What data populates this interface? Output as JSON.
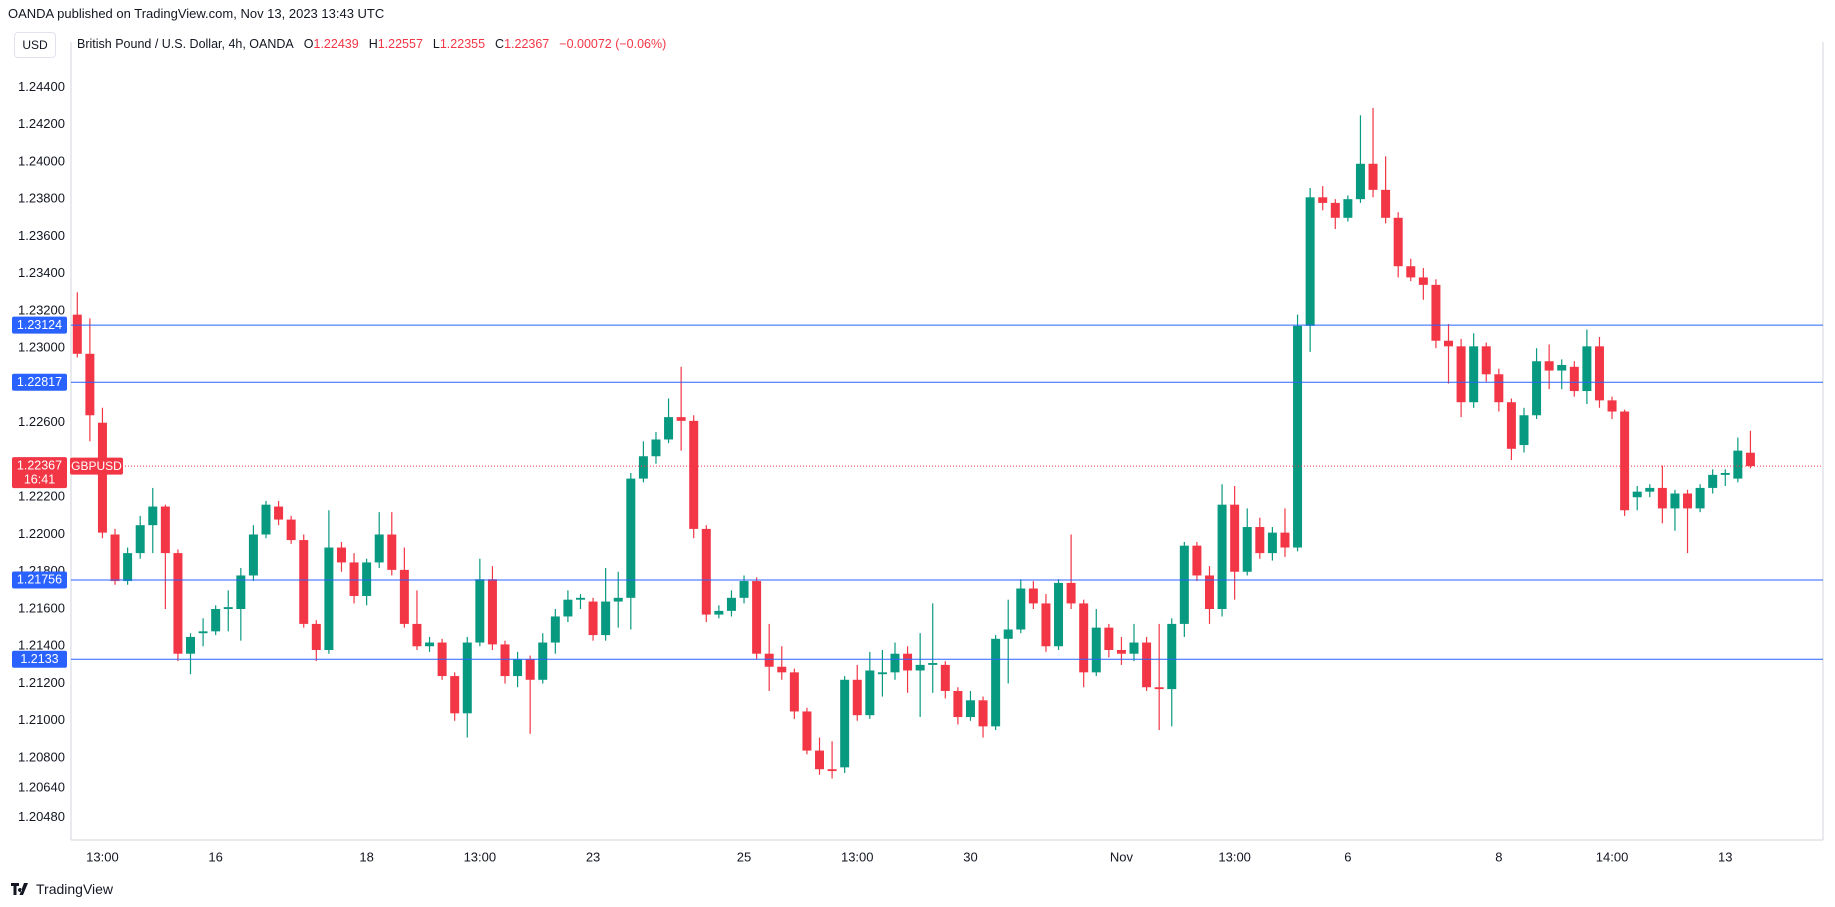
{
  "header": "OANDA published on TradingView.com, Nov 13, 2023 13:43 UTC",
  "currency": "USD",
  "footer": "TradingView",
  "chart_data": {
    "type": "candlestick",
    "symbol_name": "British Pound / U.S. Dollar, 4h, OANDA",
    "ohlc_keys": [
      "O",
      "H",
      "L",
      "C"
    ],
    "change": "−0.00072 (−0.06%)",
    "ticker": "GBPUSD",
    "countdown": "16:41",
    "up_color": "#089981",
    "down_color": "#f23645",
    "level_color": "#2962ff",
    "levels": [
      1.23124,
      1.22817,
      1.21756,
      1.2133
    ],
    "categories": [
      null,
      null,
      "13:00",
      null,
      null,
      null,
      null,
      null,
      null,
      null,
      null,
      "16",
      null,
      null,
      null,
      null,
      null,
      null,
      null,
      null,
      null,
      null,
      null,
      "18",
      null,
      null,
      null,
      null,
      null,
      null,
      null,
      null,
      "13:00",
      null,
      null,
      null,
      null,
      null,
      null,
      null,
      null,
      "23",
      null,
      null,
      null,
      null,
      null,
      null,
      null,
      null,
      null,
      null,
      null,
      "25",
      null,
      null,
      null,
      null,
      null,
      null,
      null,
      null,
      "13:00",
      null,
      null,
      null,
      null,
      null,
      null,
      null,
      null,
      "30",
      null,
      null,
      null,
      null,
      null,
      null,
      null,
      null,
      null,
      null,
      null,
      "Nov",
      null,
      null,
      null,
      null,
      null,
      null,
      null,
      null,
      "13:00",
      null,
      null,
      null,
      null,
      null,
      null,
      null,
      null,
      "6",
      null,
      null,
      null,
      null,
      null,
      null,
      null,
      null,
      null,
      null,
      null,
      "8",
      null,
      null,
      null,
      null,
      null,
      null,
      null,
      null,
      "14:00",
      null,
      null,
      null,
      null,
      null,
      null,
      null,
      null,
      "13",
      null,
      null
    ],
    "open": [
      1.2318,
      1.2297,
      1.226,
      1.22,
      1.2175,
      1.219,
      1.2205,
      1.2215,
      1.219,
      1.2136,
      1.2147,
      1.2148,
      1.216,
      1.216,
      1.2178,
      1.22,
      1.2215,
      1.2208,
      1.2197,
      1.2152,
      1.2138,
      1.2193,
      1.2185,
      1.2167,
      1.2185,
      1.22,
      1.2181,
      1.2152,
      1.214,
      1.2142,
      1.2124,
      1.2104,
      1.2142,
      1.2176,
      1.2141,
      1.2124,
      1.2133,
      1.2122,
      1.2142,
      1.2156,
      1.2165,
      1.2164,
      1.2146,
      1.2164,
      1.2166,
      1.223,
      1.2242,
      1.2251,
      1.2263,
      1.2261,
      1.2203,
      1.2157,
      1.2159,
      1.2166,
      1.2175,
      1.2136,
      1.2129,
      1.2126,
      1.2105,
      1.2084,
      1.2074,
      1.2075,
      1.2122,
      1.2103,
      1.2125,
      1.2126,
      1.2136,
      1.2127,
      1.213,
      1.213,
      1.2116,
      1.2102,
      1.2111,
      1.2097,
      1.2144,
      1.2149,
      1.2171,
      1.2163,
      1.214,
      1.2174,
      1.2163,
      1.2126,
      1.215,
      1.2138,
      1.2136,
      1.2142,
      1.2118,
      1.2117,
      1.2152,
      1.2194,
      1.2178,
      1.216,
      1.2216,
      1.218,
      1.2204,
      1.219,
      1.2201,
      1.2193,
      1.2312,
      1.2381,
      1.2378,
      1.237,
      1.238,
      1.2399,
      1.2385,
      1.237,
      1.2344,
      1.2338,
      1.2334,
      1.2304,
      1.2301,
      1.2271,
      1.2301,
      1.2286,
      1.2271,
      1.2248,
      1.2264,
      1.2293,
      1.2288,
      1.229,
      1.2277,
      1.2301,
      1.2272,
      1.2266,
      1.222,
      1.2223,
      1.2225,
      1.2214,
      1.2222,
      1.2214,
      1.2225,
      1.2232,
      1.223,
      1.22439
    ],
    "high": [
      1.233,
      1.2316,
      1.2268,
      1.2203,
      1.2193,
      1.221,
      1.2225,
      1.2216,
      1.2192,
      1.2147,
      1.2155,
      1.2162,
      1.217,
      1.2182,
      1.2205,
      1.2218,
      1.2218,
      1.221,
      1.22,
      1.2154,
      1.2213,
      1.2196,
      1.219,
      1.2187,
      1.2212,
      1.2212,
      1.2193,
      1.217,
      1.2145,
      1.2144,
      1.2126,
      1.2145,
      1.2187,
      1.2183,
      1.2143,
      1.2137,
      1.2135,
      1.2147,
      1.216,
      1.217,
      1.2168,
      1.2166,
      1.2182,
      1.218,
      1.2233,
      1.225,
      1.2255,
      1.2273,
      1.229,
      1.2264,
      1.2205,
      1.2162,
      1.217,
      1.2178,
      1.2177,
      1.2152,
      1.214,
      1.2128,
      1.2107,
      1.2091,
      1.2089,
      1.2124,
      1.213,
      1.2137,
      1.2138,
      1.2142,
      1.214,
      1.2147,
      1.2163,
      1.2132,
      1.2118,
      1.2116,
      1.2113,
      1.2146,
      1.2165,
      1.2176,
      1.2175,
      1.2168,
      1.2176,
      1.22,
      1.2165,
      1.216,
      1.2152,
      1.2145,
      1.2152,
      1.2145,
      1.2152,
      1.2155,
      1.2196,
      1.2196,
      1.2183,
      1.2227,
      1.2226,
      1.2214,
      1.2209,
      1.2204,
      1.2214,
      1.2318,
      1.2386,
      1.2387,
      1.238,
      1.2382,
      1.2425,
      1.2429,
      1.2403,
      1.2373,
      1.2348,
      1.2343,
      1.2337,
      1.2313,
      1.2305,
      1.2308,
      1.2303,
      1.2289,
      1.2273,
      1.2268,
      1.23,
      1.2302,
      1.2294,
      1.2293,
      1.231,
      1.2306,
      1.2274,
      1.2267,
      1.2226,
      1.2227,
      1.2237,
      1.2224,
      1.2224,
      1.2227,
      1.2235,
      1.2235,
      1.2252,
      1.22557
    ],
    "low": [
      1.2295,
      1.225,
      1.2198,
      1.2173,
      1.2173,
      1.2187,
      1.219,
      1.216,
      1.2132,
      1.2125,
      1.214,
      1.2146,
      1.2148,
      1.2143,
      1.2175,
      1.2198,
      1.2205,
      1.2195,
      1.215,
      1.2132,
      1.2136,
      1.218,
      1.2163,
      1.2162,
      1.2182,
      1.2178,
      1.215,
      1.2138,
      1.2137,
      1.2122,
      1.21,
      1.2091,
      1.214,
      1.2138,
      1.212,
      1.2118,
      1.2093,
      1.212,
      1.2136,
      1.2153,
      1.216,
      1.2143,
      1.2143,
      1.215,
      1.2149,
      1.2228,
      1.2238,
      1.2249,
      1.2245,
      1.2198,
      1.2153,
      1.2155,
      1.2156,
      1.2163,
      1.2133,
      1.2116,
      1.2122,
      1.2101,
      1.2082,
      1.2071,
      1.2069,
      1.2072,
      1.21,
      1.2101,
      1.2113,
      1.2122,
      1.2115,
      1.2102,
      1.2115,
      1.2112,
      1.2098,
      1.21,
      1.2091,
      1.2095,
      1.212,
      1.2147,
      1.216,
      1.2137,
      1.2138,
      1.216,
      1.2118,
      1.2124,
      1.2134,
      1.213,
      1.2132,
      1.2116,
      1.2095,
      1.2097,
      1.2145,
      1.2175,
      1.2152,
      1.2156,
      1.2165,
      1.2178,
      1.2187,
      1.2186,
      1.2188,
      1.2191,
      1.2298,
      1.2374,
      1.2364,
      1.2368,
      1.2378,
      1.2381,
      1.2367,
      1.2338,
      1.2336,
      1.2326,
      1.23,
      1.2281,
      1.2263,
      1.2268,
      1.2282,
      1.2266,
      1.224,
      1.2244,
      1.2262,
      1.2278,
      1.2278,
      1.2274,
      1.227,
      1.2268,
      1.2262,
      1.221,
      1.2213,
      1.222,
      1.2206,
      1.2202,
      1.219,
      1.2212,
      1.2222,
      1.2226,
      1.2228,
      1.22355
    ],
    "close": [
      1.2297,
      1.2264,
      1.2201,
      1.2175,
      1.219,
      1.2205,
      1.2215,
      1.219,
      1.2136,
      1.2145,
      1.2148,
      1.216,
      1.2161,
      1.2178,
      1.22,
      1.2216,
      1.2208,
      1.2197,
      1.2152,
      1.2138,
      1.2193,
      1.2185,
      1.2167,
      1.2185,
      1.22,
      1.2181,
      1.2152,
      1.214,
      1.2142,
      1.2124,
      1.2104,
      1.2142,
      1.2176,
      1.2141,
      1.2124,
      1.2133,
      1.2122,
      1.2142,
      1.2156,
      1.2165,
      1.2166,
      1.2146,
      1.2164,
      1.2166,
      1.223,
      1.2242,
      1.2251,
      1.2263,
      1.2261,
      1.2203,
      1.2157,
      1.2159,
      1.2166,
      1.2175,
      1.2136,
      1.2129,
      1.2126,
      1.2105,
      1.2084,
      1.2074,
      1.2073,
      1.2122,
      1.2103,
      1.2127,
      1.2126,
      1.2136,
      1.2127,
      1.213,
      1.2131,
      1.2116,
      1.2102,
      1.2111,
      1.2097,
      1.2144,
      1.2149,
      1.2171,
      1.2163,
      1.214,
      1.2174,
      1.2163,
      1.2126,
      1.215,
      1.2138,
      1.2136,
      1.2142,
      1.2118,
      1.2117,
      1.2152,
      1.2194,
      1.2178,
      1.216,
      1.2216,
      1.218,
      1.2204,
      1.219,
      1.2201,
      1.2193,
      1.2312,
      1.2381,
      1.2378,
      1.237,
      1.238,
      1.2399,
      1.2385,
      1.237,
      1.2344,
      1.2338,
      1.2334,
      1.2304,
      1.2301,
      1.2271,
      1.2301,
      1.2286,
      1.2271,
      1.2246,
      1.2264,
      1.2293,
      1.2288,
      1.2291,
      1.2277,
      1.2301,
      1.2272,
      1.2266,
      1.2213,
      1.2223,
      1.2225,
      1.2214,
      1.2222,
      1.2214,
      1.2225,
      1.2232,
      1.2233,
      1.2245,
      1.22367
    ],
    "ylim": [
      1.2036,
      1.2459
    ],
    "yticks": [
      {
        "value": 1.244,
        "label": "1.24400"
      },
      {
        "value": 1.242,
        "label": "1.24200"
      },
      {
        "value": 1.24,
        "label": "1.24000"
      },
      {
        "value": 1.238,
        "label": "1.23800"
      },
      {
        "value": 1.236,
        "label": "1.23600"
      },
      {
        "value": 1.234,
        "label": "1.23400"
      },
      {
        "value": 1.232,
        "label": "1.23200"
      },
      {
        "value": 1.23,
        "label": "1.23000"
      },
      {
        "value": 1.226,
        "label": "1.22600"
      },
      {
        "value": 1.222,
        "label": "1.22200"
      },
      {
        "value": 1.22,
        "label": "1.22000"
      },
      {
        "value": 1.218,
        "label": "1.21800"
      },
      {
        "value": 1.216,
        "label": "1.21600"
      },
      {
        "value": 1.214,
        "label": "1.21400"
      },
      {
        "value": 1.212,
        "label": "1.21200"
      },
      {
        "value": 1.21,
        "label": "1.21000"
      },
      {
        "value": 1.208,
        "label": "1.20800"
      },
      {
        "value": 1.2064,
        "label": "1.20640"
      },
      {
        "value": 1.2048,
        "label": "1.20480"
      }
    ]
  }
}
